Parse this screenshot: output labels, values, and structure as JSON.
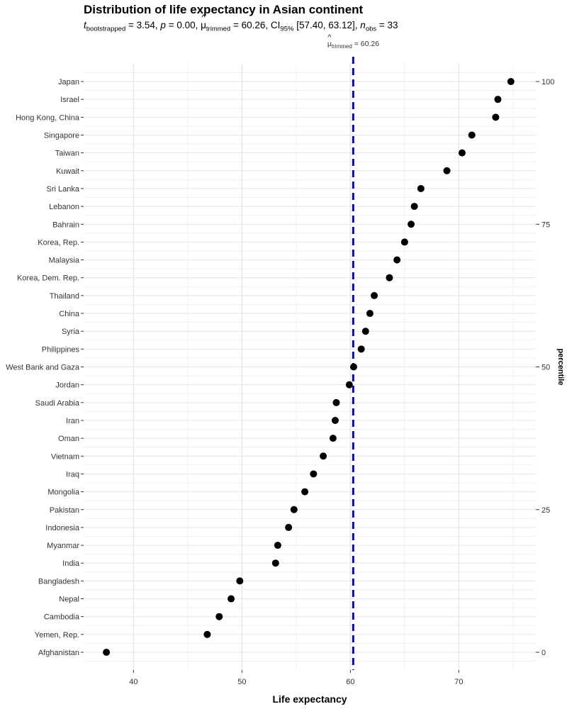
{
  "chart_data": {
    "type": "scatter",
    "title": "Distribution of life expectancy in Asian continent",
    "subtitle": {
      "t_label": "t",
      "t_sub": "bootstrapped",
      "t_value": "3.54",
      "p_label": "p",
      "p_value": "0.00",
      "mu_label": "μ",
      "mu_sub": "trimmed",
      "mu_value": "60.26",
      "ci_label": "CI",
      "ci_sub": "95%",
      "ci_value": "[57.40, 63.12]",
      "n_label": "n",
      "n_sub": "obs",
      "n_value": "33"
    },
    "mean_line": {
      "value": 60.26,
      "label": "μ",
      "label_sub": "trimmed",
      "label_value": "60.26",
      "color": "#0000ee"
    },
    "xlabel": "Life expectancy",
    "ylabel_secondary": "percentile",
    "xlim": [
      35.4,
      77.1
    ],
    "x_ticks": [
      40,
      50,
      60,
      70
    ],
    "secondary_ticks": [
      "0",
      "25",
      "50",
      "75",
      "100"
    ],
    "grid": true,
    "point_color": "#000000",
    "categories": [
      "Japan",
      "Israel",
      "Hong Kong, China",
      "Singapore",
      "Taiwan",
      "Kuwait",
      "Sri Lanka",
      "Lebanon",
      "Bahrain",
      "Korea, Rep.",
      "Malaysia",
      "Korea, Dem. Rep.",
      "Thailand",
      "China",
      "Syria",
      "Philippines",
      "West Bank and Gaza",
      "Jordan",
      "Saudi Arabia",
      "Iran",
      "Oman",
      "Vietnam",
      "Iraq",
      "Mongolia",
      "Pakistan",
      "Indonesia",
      "Myanmar",
      "India",
      "Bangladesh",
      "Nepal",
      "Cambodia",
      "Yemen, Rep.",
      "Afghanistan"
    ],
    "values": [
      74.8,
      73.6,
      73.4,
      71.2,
      70.3,
      68.9,
      66.5,
      65.9,
      65.6,
      65.0,
      64.3,
      63.6,
      62.2,
      61.8,
      61.4,
      61.0,
      60.3,
      59.9,
      58.7,
      58.6,
      58.4,
      57.5,
      56.6,
      55.8,
      54.8,
      54.3,
      53.3,
      53.1,
      49.8,
      49.0,
      47.9,
      46.8,
      37.5
    ]
  }
}
